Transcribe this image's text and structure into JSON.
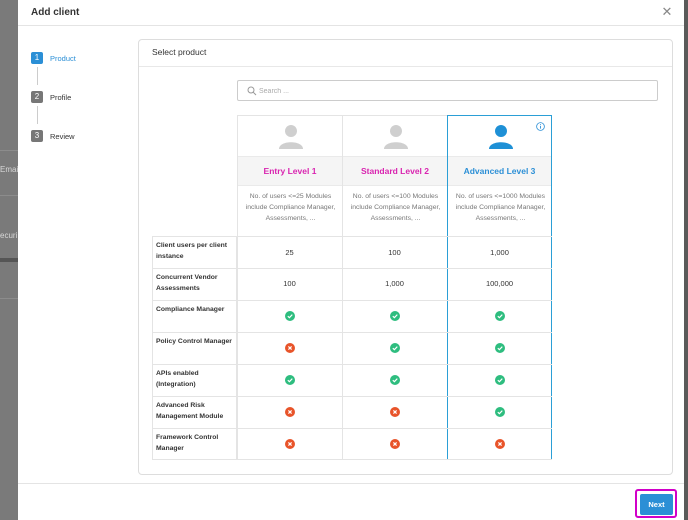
{
  "backdrop": {
    "email_fragment": "Emai",
    "other_fragment": "ecuri"
  },
  "modal": {
    "title": "Add client",
    "close_icon": "close-icon"
  },
  "steps": [
    {
      "number": "1",
      "label": "Product",
      "active": true
    },
    {
      "number": "2",
      "label": "Profile",
      "active": false
    },
    {
      "number": "3",
      "label": "Review",
      "active": false
    }
  ],
  "card": {
    "title": "Select product"
  },
  "search": {
    "placeholder": "Search ...",
    "value": "",
    "icon": "search-icon"
  },
  "plans": [
    {
      "name": "Entry Level 1",
      "description": "No. of users <=25 Modules include Compliance Manager, Assessments, ...",
      "selected": false,
      "name_color": "#d924b0"
    },
    {
      "name": "Standard Level 2",
      "description": "No. of users <=100 Modules include Compliance Manager, Assessments, ...",
      "selected": false,
      "name_color": "#d924b0"
    },
    {
      "name": "Advanced Level 3",
      "description": "No. of users <=1000 Modules include Compliance Manager, Assessments, ...",
      "selected": true,
      "name_color": "#2b8fd6"
    }
  ],
  "features": [
    {
      "label": "Client users per client instance",
      "type": "value",
      "values": [
        "25",
        "100",
        "1,000"
      ]
    },
    {
      "label": "Concurrent Vendor Assessments",
      "type": "value",
      "values": [
        "100",
        "1,000",
        "100,000"
      ]
    },
    {
      "label": "Compliance Manager",
      "type": "status",
      "values": [
        "yes",
        "yes",
        "yes"
      ]
    },
    {
      "label": "Policy Control Manager",
      "type": "status",
      "values": [
        "no",
        "yes",
        "yes"
      ]
    },
    {
      "label": "APIs enabled (Integration)",
      "type": "status",
      "values": [
        "yes",
        "yes",
        "yes"
      ]
    },
    {
      "label": "Advanced Risk Management Module",
      "type": "status",
      "values": [
        "no",
        "no",
        "yes"
      ]
    },
    {
      "label": "Framework Control Manager",
      "type": "status",
      "values": [
        "no",
        "no",
        "no"
      ]
    }
  ],
  "footer": {
    "next_label": "Next"
  },
  "colors": {
    "accent": "#2b8fd6",
    "plan_name": "#d924b0",
    "yes": "#2ebd7f",
    "no": "#e8542a",
    "highlight": "#d100c8"
  }
}
